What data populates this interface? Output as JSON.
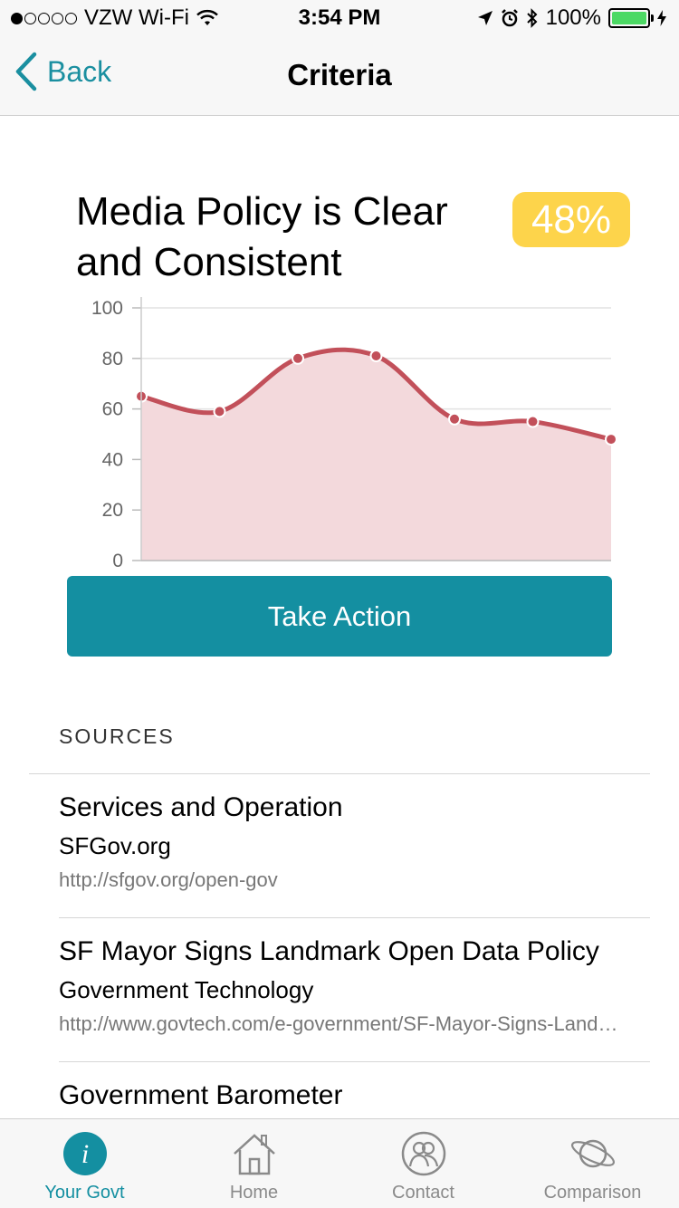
{
  "status_bar": {
    "carrier": "VZW Wi-Fi",
    "signal_dots_filled": 1,
    "signal_dots_total": 5,
    "time": "3:54 PM",
    "battery": "100%",
    "battery_color": "#4cd964"
  },
  "nav": {
    "back_label": "Back",
    "title": "Criteria"
  },
  "criterion": {
    "title": "Media Policy is Clear and Consistent",
    "percent": "48%",
    "badge_color": "#fdd44b"
  },
  "chart_data": {
    "type": "area",
    "x": [
      1,
      2,
      3,
      4,
      5,
      6,
      7
    ],
    "values": [
      65,
      59,
      80,
      81,
      56,
      55,
      48
    ],
    "y_ticks": [
      "0",
      "20",
      "40",
      "60",
      "80",
      "100"
    ],
    "ylim": [
      0,
      100
    ],
    "grid": true,
    "line_color": "#c2505a",
    "fill_color": "#f3d9dc"
  },
  "take_action_label": "Take Action",
  "accent_color": "#148fa1",
  "sources": {
    "heading": "SOURCES",
    "items": [
      {
        "title": "Services and Operation",
        "org": "SFGov.org",
        "url": "http://sfgov.org/open-gov"
      },
      {
        "title": "SF Mayor Signs Landmark Open Data Policy",
        "org": "Government Technology",
        "url": "http://www.govtech.com/e-government/SF-Mayor-Signs-Landmark-Open-Data-Policy"
      },
      {
        "title": "Government Barometer",
        "org": "",
        "url": ""
      }
    ]
  },
  "tabs": [
    {
      "label": "Your Govt",
      "icon": "info-icon",
      "active": true
    },
    {
      "label": "Home",
      "icon": "house-icon",
      "active": false
    },
    {
      "label": "Contact",
      "icon": "people-icon",
      "active": false
    },
    {
      "label": "Comparison",
      "icon": "planet-icon",
      "active": false
    }
  ]
}
